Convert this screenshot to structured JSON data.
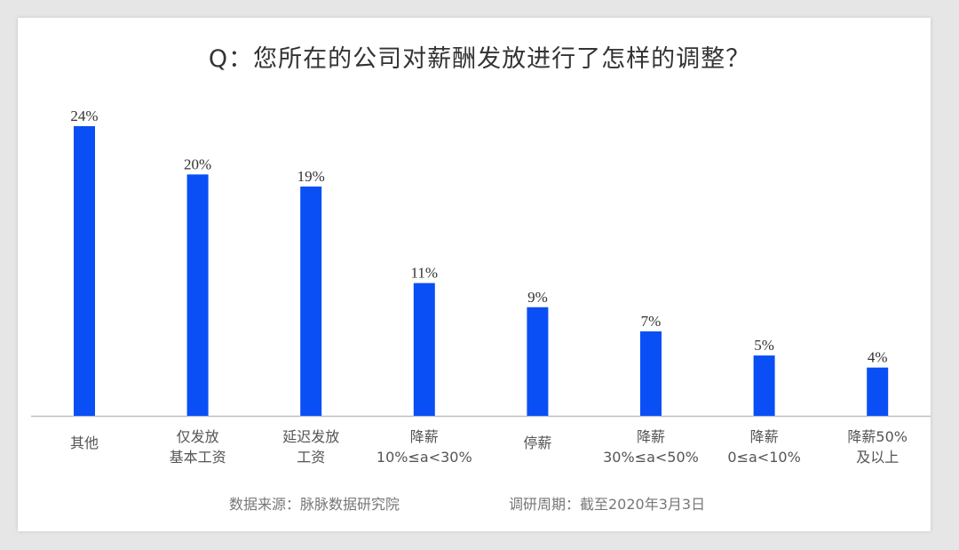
{
  "chart_data": {
    "type": "bar",
    "title": "Q：您所在的公司对薪酬发放进行了怎样的调整？",
    "categories": [
      [
        "其他"
      ],
      [
        "仅发放",
        "基本工资"
      ],
      [
        "延迟发放",
        "工资"
      ],
      [
        "降薪",
        "10%≤a<30%"
      ],
      [
        "停薪"
      ],
      [
        "降薪",
        "30%≤a<50%"
      ],
      [
        "降薪",
        "0≤a<10%"
      ],
      [
        "降薪50%",
        "及以上"
      ]
    ],
    "values": [
      24,
      20,
      19,
      11,
      9,
      7,
      5,
      4
    ],
    "value_labels": [
      "24%",
      "20%",
      "19%",
      "11%",
      "9%",
      "7%",
      "5%",
      "4%"
    ],
    "unit": "%",
    "xlabel": "",
    "ylabel": "",
    "ylim": [
      0,
      24
    ],
    "grid": false,
    "bar_color": "#0a4ff5"
  },
  "footer": {
    "source": "数据来源：脉脉数据研究院",
    "period": "调研周期：截至2020年3月3日"
  }
}
